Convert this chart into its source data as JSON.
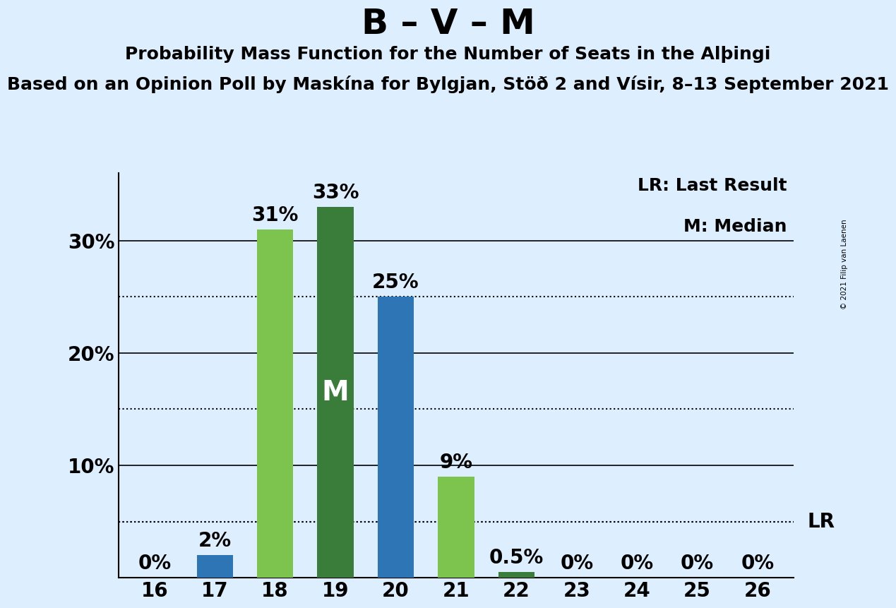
{
  "title": "B – V – M",
  "subtitle1": "Probability Mass Function for the Number of Seats in the Alþingi",
  "subtitle2": "Based on an Opinion Poll by Maskína for Bylgjan, Stöð 2 and Vísir, 8–13 September 2021",
  "copyright": "© 2021 Filip van Laenen",
  "categories": [
    16,
    17,
    18,
    19,
    20,
    21,
    22,
    23,
    24,
    25,
    26
  ],
  "values": [
    0.0,
    2.0,
    31.0,
    33.0,
    25.0,
    9.0,
    0.5,
    0.0,
    0.0,
    0.0,
    0.0
  ],
  "labels": [
    "0%",
    "2%",
    "31%",
    "33%",
    "25%",
    "9%",
    "0.5%",
    "0%",
    "0%",
    "0%",
    "0%"
  ],
  "bar_colors": [
    "#2e75b6",
    "#2e75b6",
    "#7dc44e",
    "#3a7d3a",
    "#2e75b6",
    "#7dc44e",
    "#3a7d3a",
    "#2e75b6",
    "#2e75b6",
    "#2e75b6",
    "#2e75b6"
  ],
  "median_bar_index": 3,
  "median_label": "M",
  "lr_value": 5.0,
  "lr_label": "LR",
  "lr_legend": "LR: Last Result",
  "m_legend": "M: Median",
  "ylim": [
    0,
    36
  ],
  "shown_yticks": [
    10,
    20,
    30
  ],
  "dotted_yticks": [
    5,
    15,
    25
  ],
  "background_color": "#ddeeff",
  "title_fontsize": 36,
  "subtitle1_fontsize": 18,
  "subtitle2_fontsize": 18,
  "axis_fontsize": 20,
  "bar_label_fontsize": 20,
  "legend_fontsize": 18,
  "bar_width": 0.6
}
